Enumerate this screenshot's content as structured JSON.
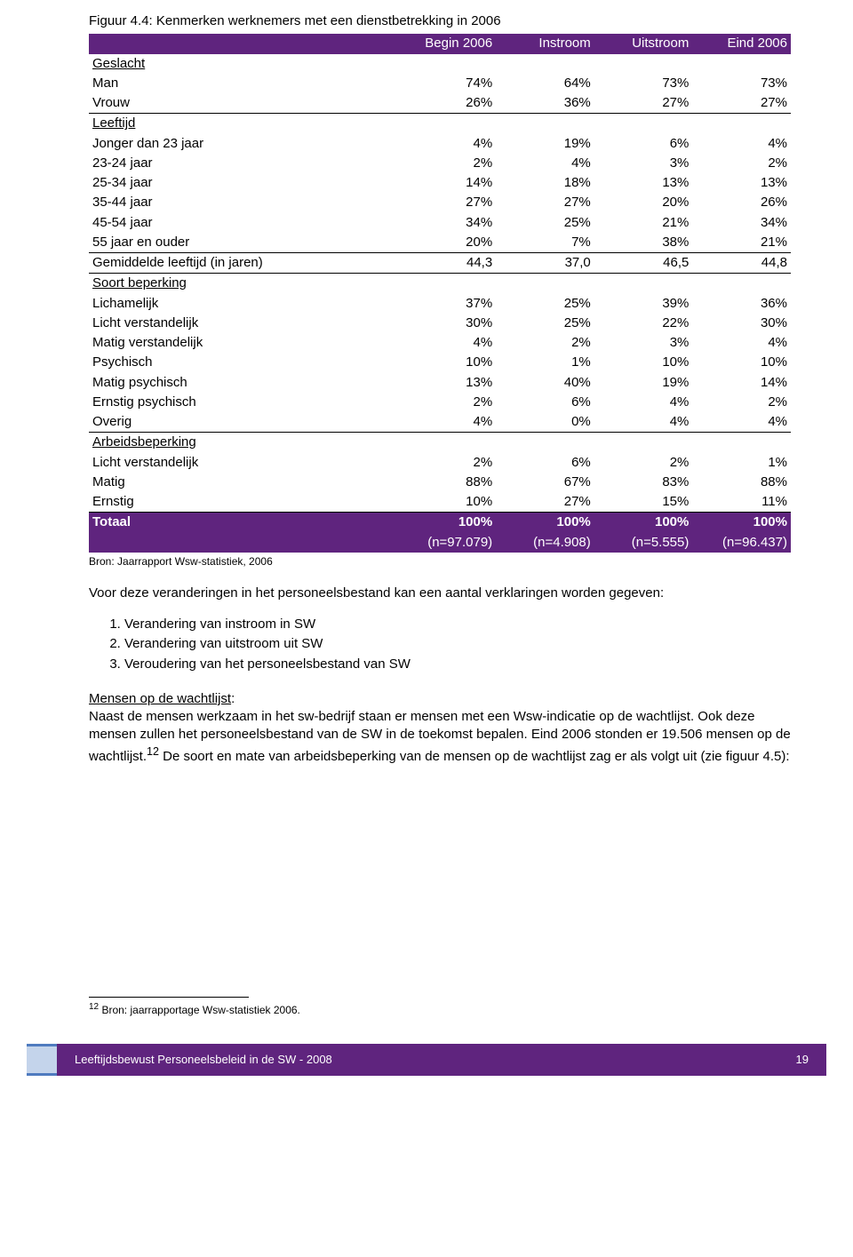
{
  "figure_title": "Figuur 4.4: Kenmerken werknemers met een dienstbetrekking in 2006",
  "table": {
    "columns": [
      "",
      "Begin 2006",
      "Instroom",
      "Uitstroom",
      "Eind 2006"
    ],
    "colors": {
      "header_bg": "#5f247e",
      "header_fg": "#ffffff",
      "body_fg": "#000000"
    },
    "rows": [
      {
        "type": "section",
        "label": "Geslacht"
      },
      {
        "type": "data",
        "label": "Man",
        "vals": [
          "74%",
          "64%",
          "73%",
          "73%"
        ]
      },
      {
        "type": "data",
        "label": "Vrouw",
        "vals": [
          "26%",
          "36%",
          "27%",
          "27%"
        ],
        "underlined": true
      },
      {
        "type": "section",
        "label": "Leeftijd"
      },
      {
        "type": "data",
        "label": "Jonger dan 23 jaar",
        "vals": [
          "4%",
          "19%",
          "6%",
          "4%"
        ]
      },
      {
        "type": "data",
        "label": "23-24 jaar",
        "vals": [
          "2%",
          "4%",
          "3%",
          "2%"
        ]
      },
      {
        "type": "data",
        "label": "25-34 jaar",
        "vals": [
          "14%",
          "18%",
          "13%",
          "13%"
        ]
      },
      {
        "type": "data",
        "label": "35-44 jaar",
        "vals": [
          "27%",
          "27%",
          "20%",
          "26%"
        ]
      },
      {
        "type": "data",
        "label": "45-54 jaar",
        "vals": [
          "34%",
          "25%",
          "21%",
          "34%"
        ]
      },
      {
        "type": "data",
        "label": "55 jaar en ouder",
        "vals": [
          "20%",
          "7%",
          "38%",
          "21%"
        ],
        "underlined": true
      },
      {
        "type": "data",
        "label": "Gemiddelde leeftijd (in jaren)",
        "vals": [
          "44,3",
          "37,0",
          "46,5",
          "44,8"
        ],
        "underlined": true
      },
      {
        "type": "section",
        "label": "Soort beperking"
      },
      {
        "type": "data",
        "label": "Lichamelijk",
        "vals": [
          "37%",
          "25%",
          "39%",
          "36%"
        ]
      },
      {
        "type": "data",
        "label": "Licht verstandelijk",
        "vals": [
          "30%",
          "25%",
          "22%",
          "30%"
        ]
      },
      {
        "type": "data",
        "label": "Matig verstandelijk",
        "vals": [
          "4%",
          "2%",
          "3%",
          "4%"
        ]
      },
      {
        "type": "data",
        "label": "Psychisch",
        "vals": [
          "10%",
          "1%",
          "10%",
          "10%"
        ]
      },
      {
        "type": "data",
        "label": "Matig psychisch",
        "vals": [
          "13%",
          "40%",
          "19%",
          "14%"
        ]
      },
      {
        "type": "data",
        "label": "Ernstig psychisch",
        "vals": [
          "2%",
          "6%",
          "4%",
          "2%"
        ]
      },
      {
        "type": "data",
        "label": "Overig",
        "vals": [
          "4%",
          "0%",
          "4%",
          "4%"
        ],
        "underlined": true
      },
      {
        "type": "section",
        "label": "Arbeidsbeperking"
      },
      {
        "type": "data",
        "label": "Licht verstandelijk",
        "vals": [
          "2%",
          "6%",
          "2%",
          "1%"
        ]
      },
      {
        "type": "data",
        "label": "Matig",
        "vals": [
          "88%",
          "67%",
          "83%",
          "88%"
        ]
      },
      {
        "type": "data",
        "label": "Ernstig",
        "vals": [
          "10%",
          "27%",
          "15%",
          "11%"
        ],
        "underlined": true
      },
      {
        "type": "total",
        "label": "Totaal",
        "vals": [
          "100%",
          "100%",
          "100%",
          "100%"
        ]
      },
      {
        "type": "n",
        "label": "",
        "vals": [
          "(n=97.079)",
          "(n=4.908)",
          "(n=5.555)",
          "(n=96.437)"
        ]
      }
    ]
  },
  "source": "Bron: Jaarrapport Wsw-statistiek, 2006",
  "para1": "Voor deze veranderingen in het personeelsbestand kan een aantal verklaringen worden gegeven:",
  "list": [
    "Verandering van instroom in SW",
    "Verandering van uitstroom uit SW",
    "Veroudering van het personeelsbestand van SW"
  ],
  "subhead": "Mensen op de wachtlijst",
  "para2_a": "Naast de mensen werkzaam in het sw-bedrijf staan er mensen met een Wsw-indicatie op de wachtlijst. Ook deze mensen zullen het personeelsbestand van de SW in de toekomst bepalen. Eind 2006 stonden er 19.506 mensen op de wachtlijst.",
  "para2_sup": "12",
  "para2_b": " De soort en mate van arbeidsbeperking van de mensen op de wachtlijst zag er als volgt uit (zie figuur 4.5):",
  "footnote_num": "12",
  "footnote_text": " Bron: jaarrapportage Wsw-statistiek 2006.",
  "footer_title": "Leeftijdsbewust Personeelsbeleid in de SW - 2008",
  "footer_page": "19"
}
